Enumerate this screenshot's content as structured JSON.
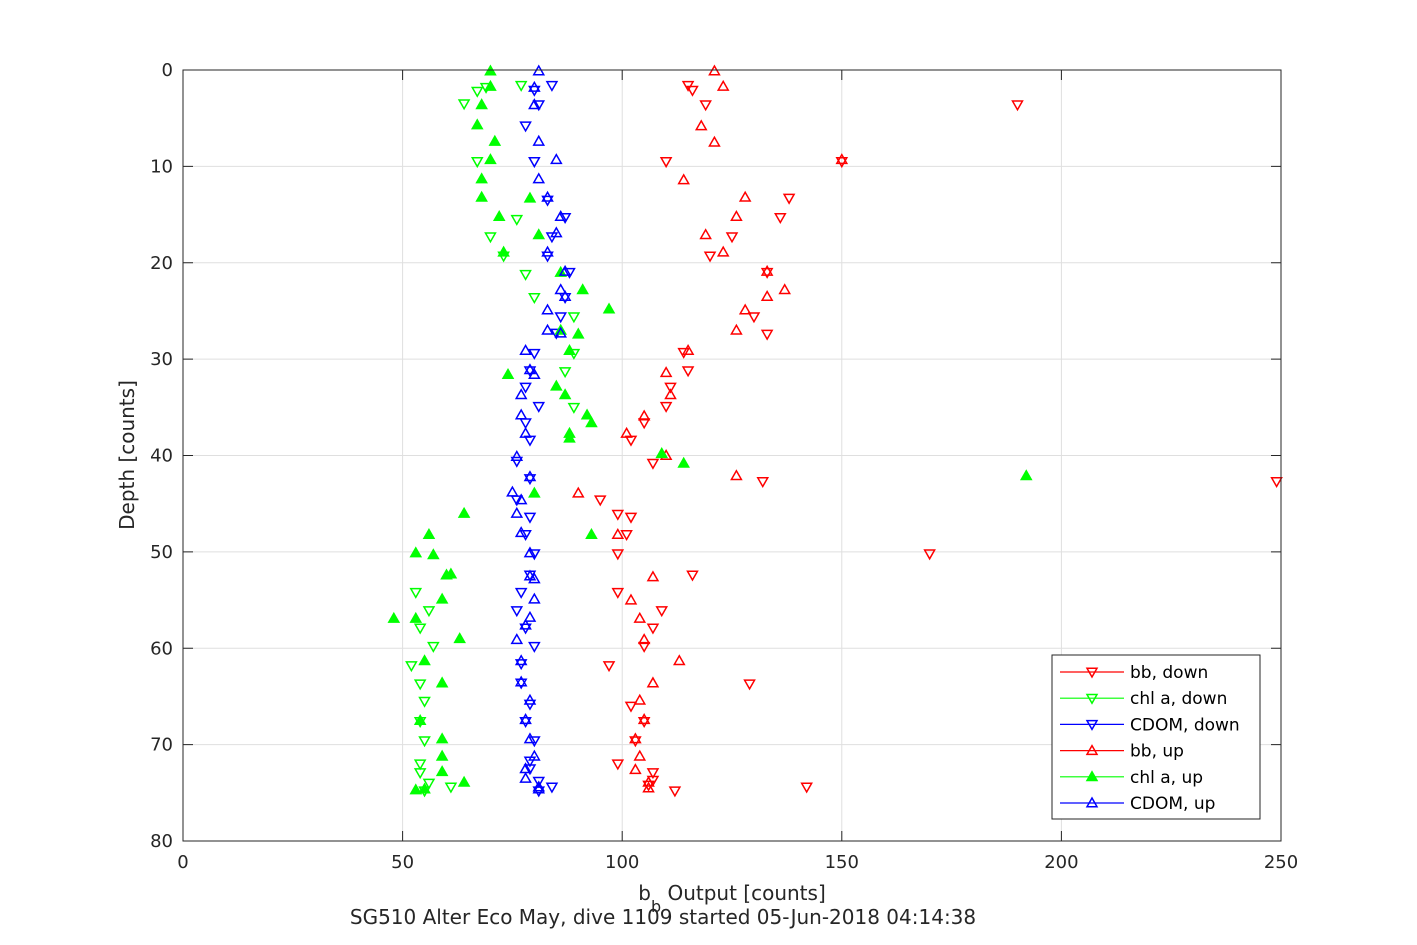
{
  "chart_data": {
    "type": "scatter",
    "xlabel_main": "b",
    "xlabel_sub": "b",
    "xlabel_rest": " Output [counts]",
    "ylabel": "Depth [counts]",
    "caption": "SG510 Alter Eco May, dive 1109 started 05-Jun-2018 04:14:38",
    "xlim": [
      0,
      250
    ],
    "ylim": [
      0,
      80
    ],
    "y_reversed": true,
    "xticks": [
      "0",
      "50",
      "100",
      "150",
      "200",
      "250"
    ],
    "yticks": [
      "0",
      "10",
      "20",
      "30",
      "40",
      "50",
      "60",
      "70",
      "80"
    ],
    "grid": true,
    "legend_position": "bottom-right",
    "series": [
      {
        "name": "bb, down",
        "color": "#ff0000",
        "marker": "triangle-down",
        "points": [
          [
            115,
            1.6
          ],
          [
            116,
            2.1
          ],
          [
            119,
            3.6
          ],
          [
            190,
            3.6
          ],
          [
            110,
            9.5
          ],
          [
            150,
            9.5
          ],
          [
            138,
            13.3
          ],
          [
            136,
            15.3
          ],
          [
            125,
            17.3
          ],
          [
            120,
            19.3
          ],
          [
            133,
            21
          ],
          [
            130,
            25.6
          ],
          [
            133,
            27.4
          ],
          [
            114,
            29.3
          ],
          [
            115,
            31.2
          ],
          [
            111,
            32.9
          ],
          [
            110,
            34.9
          ],
          [
            105,
            36.6
          ],
          [
            102,
            38.4
          ],
          [
            107,
            40.8
          ],
          [
            132,
            42.7
          ],
          [
            249,
            42.7
          ],
          [
            95,
            44.6
          ],
          [
            99,
            46.1
          ],
          [
            102,
            46.4
          ],
          [
            101,
            48.2
          ],
          [
            99,
            50.2
          ],
          [
            170,
            50.2
          ],
          [
            116,
            52.4
          ],
          [
            99,
            54.2
          ],
          [
            109,
            56.1
          ],
          [
            107,
            57.9
          ],
          [
            105,
            59.8
          ],
          [
            97,
            61.8
          ],
          [
            129,
            63.7
          ],
          [
            102,
            66
          ],
          [
            105,
            67.6
          ],
          [
            103,
            69.6
          ],
          [
            99,
            72
          ],
          [
            107,
            72.9
          ],
          [
            107,
            73.7
          ],
          [
            106,
            74.2
          ],
          [
            112,
            74.8
          ],
          [
            142,
            74.4
          ]
        ]
      },
      {
        "name": "chl a, down",
        "color": "#00ff00",
        "marker": "triangle-down",
        "points": [
          [
            69,
            1.8
          ],
          [
            77,
            1.6
          ],
          [
            67,
            2.2
          ],
          [
            64,
            3.5
          ],
          [
            67,
            9.5
          ],
          [
            76,
            15.5
          ],
          [
            70,
            17.3
          ],
          [
            73,
            19.3
          ],
          [
            78,
            21.2
          ],
          [
            80,
            23.6
          ],
          [
            89,
            25.6
          ],
          [
            89,
            29.4
          ],
          [
            87,
            31.3
          ],
          [
            89,
            35
          ],
          [
            53,
            54.2
          ],
          [
            56,
            56.1
          ],
          [
            54,
            57.9
          ],
          [
            57,
            59.8
          ],
          [
            52,
            61.8
          ],
          [
            54,
            63.7
          ],
          [
            55,
            65.5
          ],
          [
            54,
            67.6
          ],
          [
            55,
            69.6
          ],
          [
            54,
            72
          ],
          [
            54,
            72.9
          ],
          [
            56,
            74
          ],
          [
            61,
            74.4
          ],
          [
            55,
            74.8
          ]
        ]
      },
      {
        "name": "CDOM, down",
        "color": "#0000ff",
        "marker": "triangle-down",
        "points": [
          [
            80,
            2.1
          ],
          [
            84,
            1.6
          ],
          [
            81,
            3.6
          ],
          [
            78,
            5.8
          ],
          [
            80,
            9.5
          ],
          [
            83,
            13.5
          ],
          [
            87,
            15.3
          ],
          [
            84,
            17.3
          ],
          [
            83,
            19.3
          ],
          [
            88,
            21
          ],
          [
            87,
            23.6
          ],
          [
            86,
            25.6
          ],
          [
            85,
            27.3
          ],
          [
            80,
            29.4
          ],
          [
            79,
            31.2
          ],
          [
            78,
            32.9
          ],
          [
            81,
            34.9
          ],
          [
            78,
            36.6
          ],
          [
            79,
            38.4
          ],
          [
            76,
            40.6
          ],
          [
            79,
            42.4
          ],
          [
            76,
            44.6
          ],
          [
            79,
            46.4
          ],
          [
            78,
            48.2
          ],
          [
            80,
            50.2
          ],
          [
            79,
            52.4
          ],
          [
            77,
            54.2
          ],
          [
            76,
            56.1
          ],
          [
            78,
            57.9
          ],
          [
            80,
            59.8
          ],
          [
            77,
            61.6
          ],
          [
            77,
            63.6
          ],
          [
            79,
            65.8
          ],
          [
            78,
            67.6
          ],
          [
            80,
            69.6
          ],
          [
            79,
            71.7
          ],
          [
            79,
            72.5
          ],
          [
            81,
            73.8
          ],
          [
            81,
            74.8
          ],
          [
            84,
            74.4
          ]
        ]
      },
      {
        "name": "bb, up",
        "color": "#ff0000",
        "marker": "triangle-up",
        "points": [
          [
            121,
            0.1
          ],
          [
            123,
            1.7
          ],
          [
            118,
            5.8
          ],
          [
            121,
            7.5
          ],
          [
            150,
            9.3
          ],
          [
            114,
            11.4
          ],
          [
            128,
            13.2
          ],
          [
            126,
            15.2
          ],
          [
            119,
            17.1
          ],
          [
            123,
            18.9
          ],
          [
            133,
            20.9
          ],
          [
            137,
            22.8
          ],
          [
            133,
            23.5
          ],
          [
            128,
            24.9
          ],
          [
            126,
            27
          ],
          [
            115,
            29.1
          ],
          [
            110,
            31.4
          ],
          [
            111,
            33.7
          ],
          [
            105,
            35.9
          ],
          [
            101,
            37.7
          ],
          [
            110,
            40
          ],
          [
            126,
            42.1
          ],
          [
            90,
            43.9
          ],
          [
            99,
            48.2
          ],
          [
            107,
            52.6
          ],
          [
            102,
            55
          ],
          [
            104,
            56.9
          ],
          [
            105,
            59.1
          ],
          [
            113,
            61.3
          ],
          [
            107,
            63.6
          ],
          [
            104,
            65.4
          ],
          [
            105,
            67.4
          ],
          [
            103,
            69.4
          ],
          [
            104,
            71.2
          ],
          [
            103,
            72.6
          ],
          [
            106,
            73.9
          ],
          [
            106,
            74.5
          ]
        ]
      },
      {
        "name": "chl a, up",
        "color": "#00ff00",
        "marker": "triangle-up",
        "points": [
          [
            70,
            0.1
          ],
          [
            70,
            1.7
          ],
          [
            68,
            3.6
          ],
          [
            67,
            5.7
          ],
          [
            71,
            7.4
          ],
          [
            70,
            9.3
          ],
          [
            68,
            11.3
          ],
          [
            68,
            13.2
          ],
          [
            72,
            15.2
          ],
          [
            73,
            18.9
          ],
          [
            79,
            13.3
          ],
          [
            81,
            17.1
          ],
          [
            86,
            21
          ],
          [
            91,
            22.8
          ],
          [
            97,
            24.8
          ],
          [
            86,
            27
          ],
          [
            90,
            27.4
          ],
          [
            88,
            29.1
          ],
          [
            74,
            31.6
          ],
          [
            85,
            32.8
          ],
          [
            87,
            33.7
          ],
          [
            92,
            35.8
          ],
          [
            93,
            36.6
          ],
          [
            88,
            37.7
          ],
          [
            88,
            38.2
          ],
          [
            109,
            39.8
          ],
          [
            114,
            40.8
          ],
          [
            192,
            42.1
          ],
          [
            80,
            43.9
          ],
          [
            64,
            46
          ],
          [
            56,
            48.2
          ],
          [
            93,
            48.2
          ],
          [
            53,
            50.1
          ],
          [
            57,
            50.3
          ],
          [
            60,
            52.4
          ],
          [
            61,
            52.3
          ],
          [
            59,
            54.9
          ],
          [
            53,
            56.9
          ],
          [
            48,
            56.9
          ],
          [
            63,
            59
          ],
          [
            55,
            61.3
          ],
          [
            59,
            63.6
          ],
          [
            54,
            67.5
          ],
          [
            59,
            69.4
          ],
          [
            59,
            71.2
          ],
          [
            59,
            72.8
          ],
          [
            64,
            73.9
          ],
          [
            53,
            74.7
          ],
          [
            55,
            74.6
          ]
        ]
      },
      {
        "name": "CDOM, up",
        "color": "#0000ff",
        "marker": "triangle-up",
        "points": [
          [
            81,
            0.1
          ],
          [
            80,
            1.8
          ],
          [
            80,
            3.6
          ],
          [
            81,
            7.4
          ],
          [
            85,
            9.3
          ],
          [
            81,
            11.3
          ],
          [
            83,
            13.2
          ],
          [
            86,
            15.2
          ],
          [
            85,
            16.9
          ],
          [
            83,
            18.9
          ],
          [
            87,
            20.9
          ],
          [
            86,
            22.8
          ],
          [
            87,
            23.5
          ],
          [
            83,
            24.9
          ],
          [
            83,
            27
          ],
          [
            86,
            27.3
          ],
          [
            78,
            29.1
          ],
          [
            79,
            31.1
          ],
          [
            80,
            31.6
          ],
          [
            77,
            33.7
          ],
          [
            77,
            35.8
          ],
          [
            78,
            37.7
          ],
          [
            76,
            40.1
          ],
          [
            79,
            42.2
          ],
          [
            75,
            43.8
          ],
          [
            77,
            44.6
          ],
          [
            76,
            46
          ],
          [
            77,
            48
          ],
          [
            79,
            50.1
          ],
          [
            79,
            52.5
          ],
          [
            80,
            52.8
          ],
          [
            80,
            54.9
          ],
          [
            79,
            56.8
          ],
          [
            78,
            57.6
          ],
          [
            76,
            59.1
          ],
          [
            77,
            61.3
          ],
          [
            77,
            63.5
          ],
          [
            79,
            65.4
          ],
          [
            78,
            67.4
          ],
          [
            79,
            69.4
          ],
          [
            80,
            71.2
          ],
          [
            78,
            72.5
          ],
          [
            78,
            73.5
          ],
          [
            81,
            74.4
          ],
          [
            81,
            74.6
          ]
        ]
      }
    ]
  }
}
